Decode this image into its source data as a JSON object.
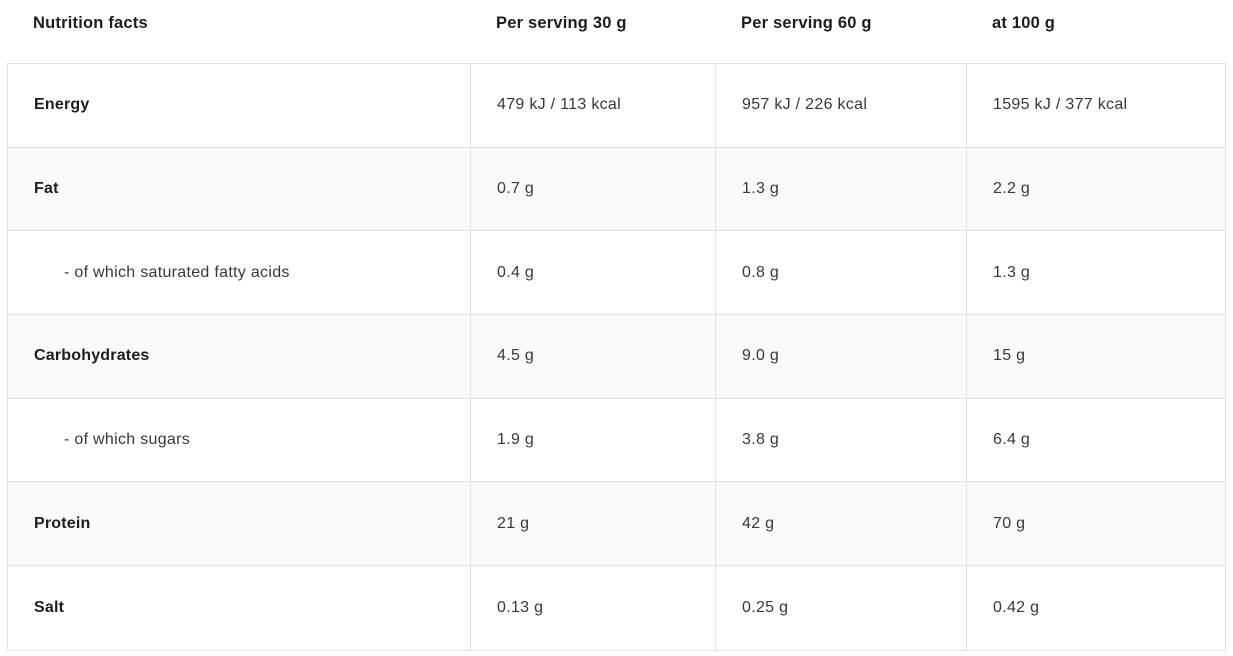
{
  "header": {
    "title": "Nutrition facts",
    "columns": [
      "Per serving 30 g",
      "Per serving 60 g",
      "at 100 g"
    ]
  },
  "chart_data": {
    "type": "table",
    "title": "Nutrition facts",
    "columns": [
      "Nutrition facts",
      "Per serving 30 g",
      "Per serving 60 g",
      "at 100 g"
    ],
    "rows": [
      {
        "label": "Energy",
        "bold": true,
        "indent": false,
        "values": [
          "479 kJ / 113 kcal",
          "957 kJ / 226 kcal",
          "1595 kJ / 377 kcal"
        ]
      },
      {
        "label": "Fat",
        "bold": true,
        "indent": false,
        "values": [
          "0.7 g",
          "1.3 g",
          "2.2 g"
        ]
      },
      {
        "label": "- of which saturated fatty acids",
        "bold": false,
        "indent": true,
        "values": [
          "0.4 g",
          "0.8 g",
          "1.3 g"
        ]
      },
      {
        "label": "Carbohydrates",
        "bold": true,
        "indent": false,
        "values": [
          "4.5 g",
          "9.0 g",
          "15 g"
        ]
      },
      {
        "label": "- of which sugars",
        "bold": false,
        "indent": true,
        "values": [
          "1.9 g",
          "3.8 g",
          "6.4 g"
        ]
      },
      {
        "label": "Protein",
        "bold": true,
        "indent": false,
        "values": [
          "21 g",
          "42 g",
          "70 g"
        ]
      },
      {
        "label": "Salt",
        "bold": true,
        "indent": false,
        "values": [
          "0.13 g",
          "0.25 g",
          "0.42 g"
        ]
      }
    ]
  },
  "colors": {
    "border": "#e2e2e2",
    "alt_row_bg": "#fafafa",
    "heading_text": "#1d1d1d",
    "body_text": "#383838",
    "page_bg": "#ffffff"
  }
}
